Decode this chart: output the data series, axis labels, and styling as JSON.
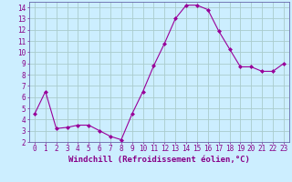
{
  "x": [
    0,
    1,
    2,
    3,
    4,
    5,
    6,
    7,
    8,
    9,
    10,
    11,
    12,
    13,
    14,
    15,
    16,
    17,
    18,
    19,
    20,
    21,
    22,
    23
  ],
  "y": [
    4.5,
    6.5,
    3.2,
    3.3,
    3.5,
    3.5,
    3.0,
    2.5,
    2.2,
    4.5,
    6.5,
    8.8,
    10.8,
    13.0,
    14.2,
    14.2,
    13.8,
    11.9,
    10.3,
    8.7,
    8.7,
    8.3,
    8.3,
    9.0
  ],
  "line_color": "#990099",
  "marker": "D",
  "marker_size": 2,
  "background_color": "#cceeff",
  "grid_color": "#aacccc",
  "xlabel": "Windchill (Refroidissement éolien,°C)",
  "xlabel_fontsize": 6.5,
  "ylim": [
    2,
    14.5
  ],
  "xlim": [
    -0.5,
    23.5
  ],
  "yticks": [
    2,
    3,
    4,
    5,
    6,
    7,
    8,
    9,
    10,
    11,
    12,
    13,
    14
  ],
  "xticks": [
    0,
    1,
    2,
    3,
    4,
    5,
    6,
    7,
    8,
    9,
    10,
    11,
    12,
    13,
    14,
    15,
    16,
    17,
    18,
    19,
    20,
    21,
    22,
    23
  ],
  "tick_fontsize": 5.5,
  "tick_color": "#880088",
  "spine_color": "#6666aa"
}
